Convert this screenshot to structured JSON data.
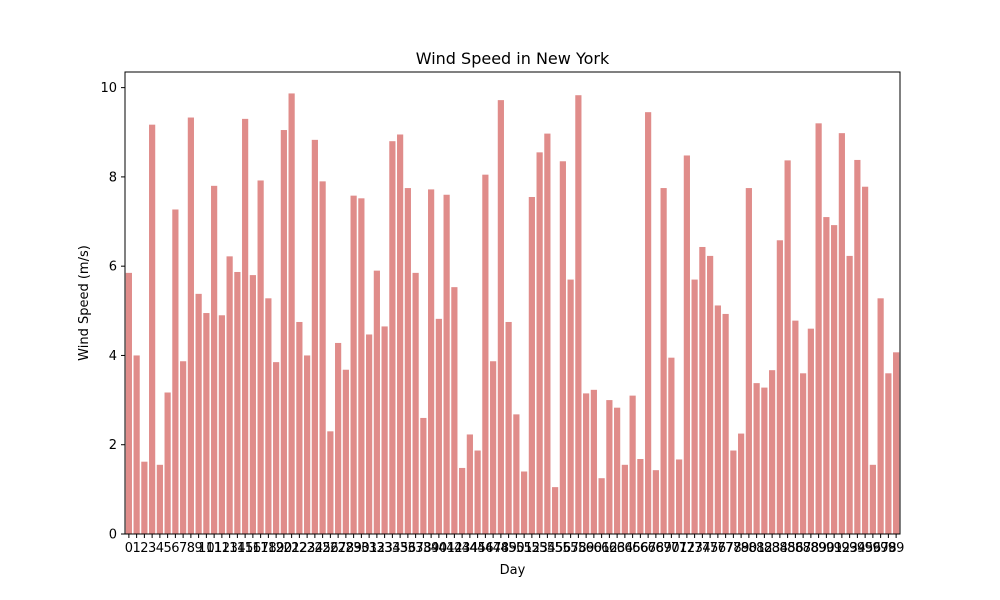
{
  "chart_data": {
    "type": "bar",
    "title": "Wind Speed in New York",
    "xlabel": "Day",
    "ylabel": "Wind Speed (m/s)",
    "ylim": [
      0,
      10.35
    ],
    "yticks": [
      0,
      2,
      4,
      6,
      8,
      10
    ],
    "grid": false,
    "bar_color": "#e08c8a",
    "categories": [
      "0",
      "1",
      "2",
      "3",
      "4",
      "5",
      "6",
      "7",
      "8",
      "9",
      "10",
      "11",
      "12",
      "13",
      "14",
      "15",
      "16",
      "17",
      "18",
      "19",
      "20",
      "21",
      "22",
      "23",
      "24",
      "25",
      "26",
      "27",
      "28",
      "29",
      "30",
      "31",
      "32",
      "33",
      "34",
      "35",
      "36",
      "37",
      "38",
      "39",
      "40",
      "41",
      "42",
      "43",
      "44",
      "45",
      "46",
      "47",
      "48",
      "49",
      "50",
      "51",
      "52",
      "53",
      "54",
      "55",
      "56",
      "57",
      "58",
      "59",
      "60",
      "61",
      "62",
      "63",
      "64",
      "65",
      "66",
      "67",
      "68",
      "69",
      "70",
      "71",
      "72",
      "73",
      "74",
      "75",
      "76",
      "77",
      "78",
      "79",
      "80",
      "81",
      "82",
      "83",
      "84",
      "85",
      "86",
      "87",
      "88",
      "89",
      "90",
      "91",
      "92",
      "93",
      "94",
      "95",
      "96",
      "97",
      "98",
      "99"
    ],
    "values": [
      5.85,
      4.0,
      1.62,
      9.17,
      1.55,
      3.17,
      7.27,
      3.87,
      9.33,
      5.38,
      4.95,
      7.8,
      4.9,
      6.22,
      5.87,
      9.3,
      5.8,
      7.92,
      5.28,
      3.85,
      9.05,
      9.87,
      4.75,
      4.0,
      8.83,
      7.9,
      2.3,
      4.28,
      3.68,
      7.58,
      7.52,
      4.47,
      5.9,
      4.65,
      8.8,
      8.95,
      7.75,
      5.85,
      2.6,
      7.72,
      4.82,
      7.6,
      5.53,
      1.48,
      2.23,
      1.87,
      8.05,
      3.87,
      9.72,
      4.75,
      2.68,
      1.4,
      7.55,
      8.55,
      8.97,
      1.05,
      8.35,
      5.7,
      9.83,
      3.15,
      3.23,
      1.25,
      3.0,
      2.83,
      1.55,
      3.1,
      1.68,
      9.45,
      1.43,
      7.75,
      3.95,
      1.67,
      8.48,
      5.7,
      6.43,
      6.23,
      5.12,
      4.93,
      1.87,
      2.25,
      7.75,
      3.38,
      3.28,
      3.67,
      6.58,
      8.37,
      4.78,
      3.6,
      4.6,
      9.2,
      7.1,
      6.92,
      8.98,
      6.23,
      8.38,
      7.78,
      1.55,
      5.28,
      3.6,
      4.07
    ]
  }
}
